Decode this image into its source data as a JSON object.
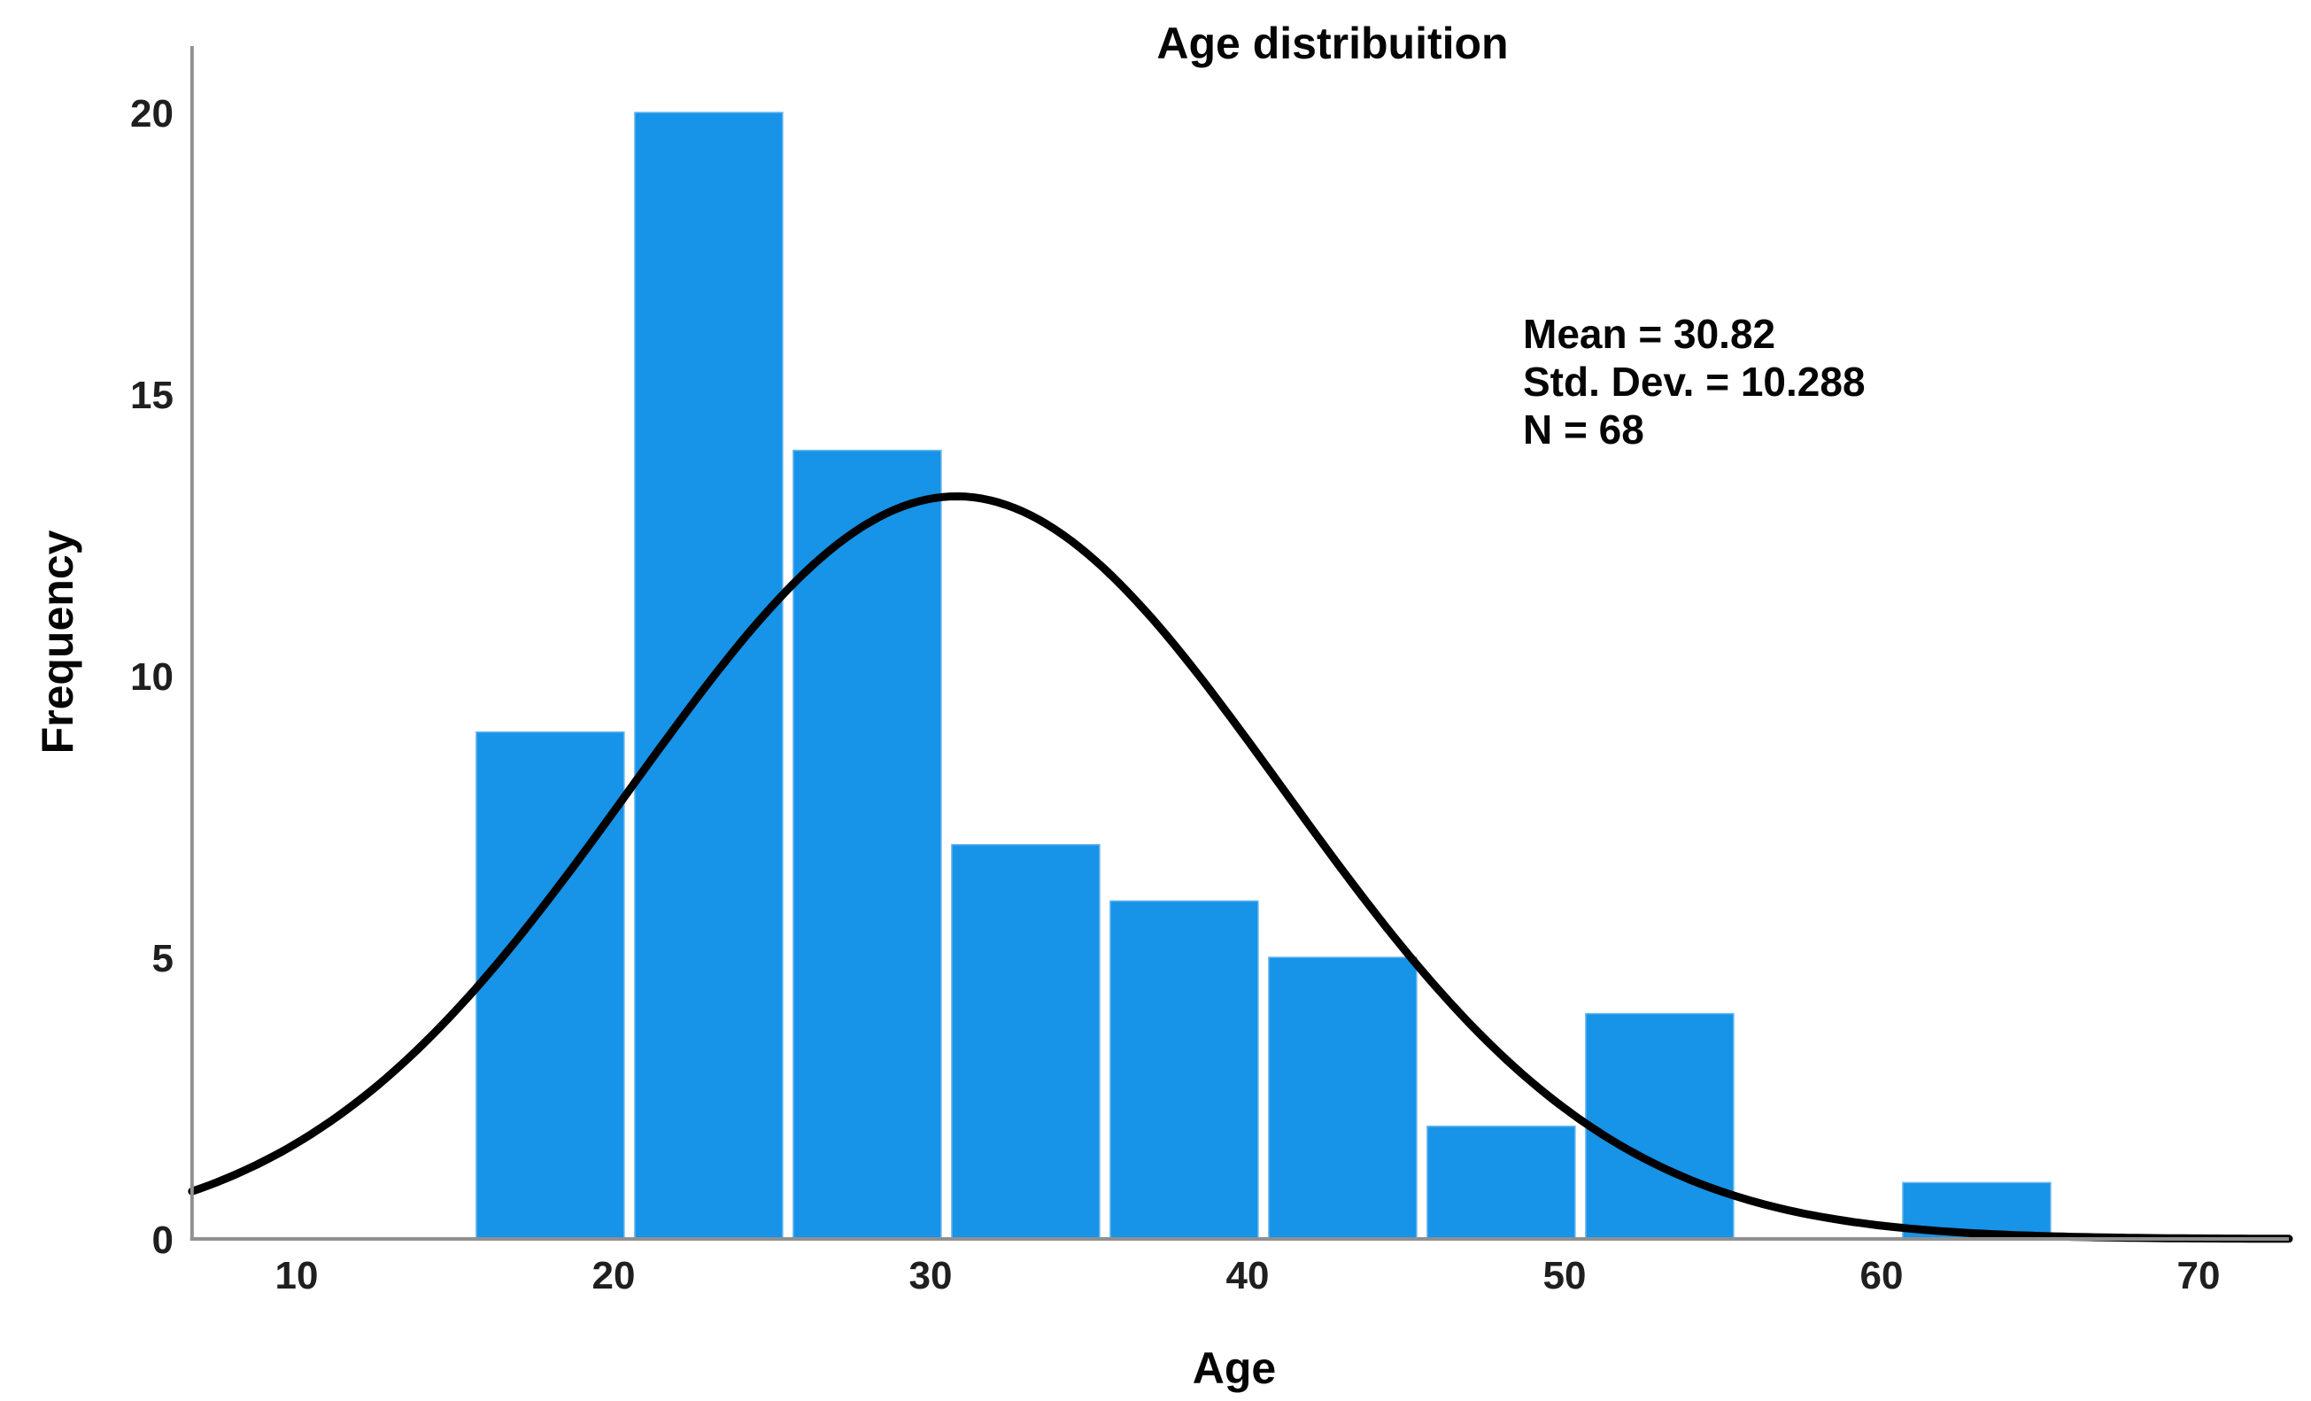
{
  "page": {
    "background": "#ffffff"
  },
  "chart_data": {
    "type": "bar",
    "subtype": "histogram-with-normal-curve",
    "title": "Age distribuition",
    "xlabel": "Age",
    "ylabel": "Frequency",
    "bin_start": 15.5,
    "bin_width": 5,
    "bin_edges": [
      15.5,
      20.5,
      25.5,
      30.5,
      35.5,
      40.5,
      45.5,
      50.5,
      55.5,
      60.5,
      65.5
    ],
    "counts": [
      9,
      20,
      14,
      7,
      6,
      5,
      2,
      4,
      0,
      1
    ],
    "normal_curve": {
      "mean": 30.82,
      "std_dev": 10.288,
      "n": 68
    },
    "annotations": [
      "Mean = 30.82",
      "Std. Dev. = 10.288",
      "N = 68"
    ],
    "x_ticks": [
      10,
      20,
      30,
      40,
      50,
      60,
      70
    ],
    "y_ticks": [
      0,
      5,
      10,
      15,
      20
    ],
    "x_range": [
      6.7,
      72.85
    ],
    "y_range": [
      0,
      21.2
    ],
    "grid": false,
    "legend": false,
    "colors": {
      "bar": "#1793e8",
      "bar_edge": "#66b6ef",
      "curve": "#000000",
      "axis": "#909090",
      "text": "#050505"
    }
  }
}
